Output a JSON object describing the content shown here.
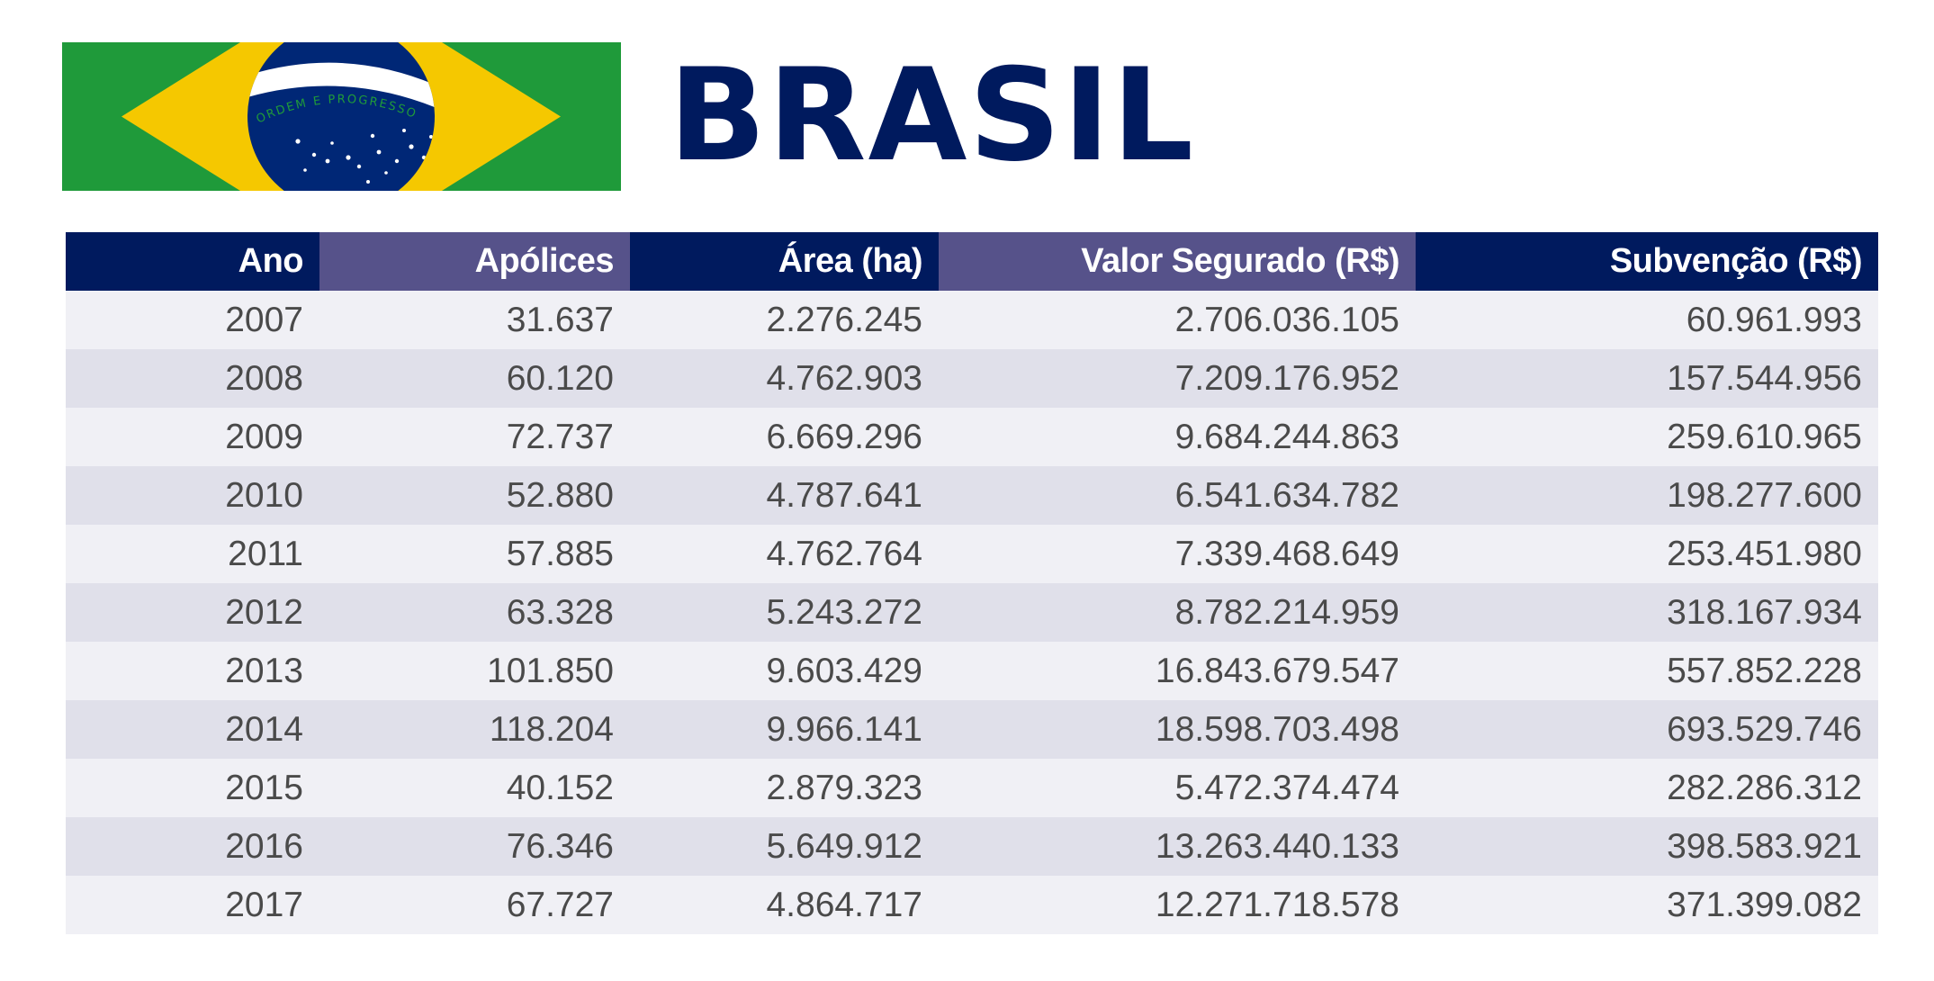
{
  "header": {
    "title": "BRASIL",
    "flag": {
      "name": "brazil-flag",
      "motto": "ORDEM E PROGRESSO",
      "colors": {
        "green": "#1f9a3a",
        "yellow": "#f5c800",
        "blue": "#002776",
        "white": "#ffffff"
      }
    }
  },
  "table": {
    "columns": [
      "Ano",
      "Apólices",
      "Área (ha)",
      "Valor Segurado (R$)",
      "Subvenção (R$)"
    ],
    "rows": [
      [
        "2007",
        "31.637",
        "2.276.245",
        "2.706.036.105",
        "60.961.993"
      ],
      [
        "2008",
        "60.120",
        "4.762.903",
        "7.209.176.952",
        "157.544.956"
      ],
      [
        "2009",
        "72.737",
        "6.669.296",
        "9.684.244.863",
        "259.610.965"
      ],
      [
        "2010",
        "52.880",
        "4.787.641",
        "6.541.634.782",
        "198.277.600"
      ],
      [
        "2011",
        "57.885",
        "4.762.764",
        "7.339.468.649",
        "253.451.980"
      ],
      [
        "2012",
        "63.328",
        "5.243.272",
        "8.782.214.959",
        "318.167.934"
      ],
      [
        "2013",
        "101.850",
        "9.603.429",
        "16.843.679.547",
        "557.852.228"
      ],
      [
        "2014",
        "118.204",
        "9.966.141",
        "18.598.703.498",
        "693.529.746"
      ],
      [
        "2015",
        "40.152",
        "2.879.323",
        "5.472.374.474",
        "282.286.312"
      ],
      [
        "2016",
        "76.346",
        "5.649.912",
        "13.263.440.133",
        "398.583.921"
      ],
      [
        "2017",
        "67.727",
        "4.864.717",
        "12.271.718.578",
        "371.399.082"
      ]
    ]
  },
  "colors": {
    "header_dark": "#001a5e",
    "header_light": "#56528a",
    "row_odd": "#f0f0f5",
    "row_even": "#e0e0ea",
    "text": "#4a4a4a",
    "title": "#001a5e"
  }
}
